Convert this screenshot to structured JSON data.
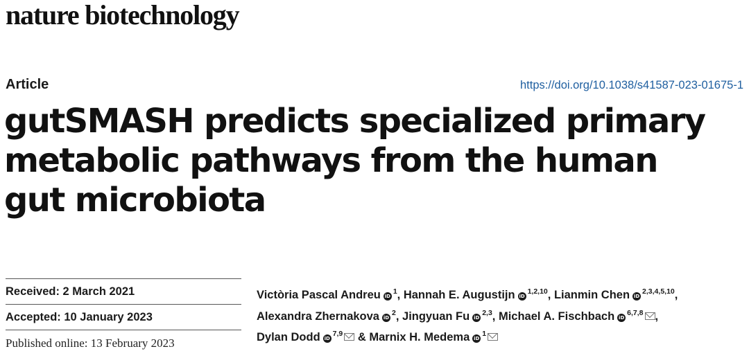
{
  "journal": {
    "name": "nature biotechnology"
  },
  "article": {
    "type": "Article",
    "doi": "https://doi.org/10.1038/s41587-023-01675-1",
    "title_lines": [
      "gutSMASH predicts specialized primary",
      "metabolic pathways from the human",
      "gut microbiota"
    ]
  },
  "dates": {
    "received": "Received: 2 March 2021",
    "accepted": "Accepted: 10 January 2023",
    "published": "Published online: 13 February 2023"
  },
  "authors": [
    {
      "name": "Victòria Pascal Andreu",
      "orcid_icon": "iD",
      "aff": "1",
      "sep": ", "
    },
    {
      "name": "Hannah E. Augustijn",
      "orcid_icon": "iD",
      "aff": "1,2,10",
      "sep": ", "
    },
    {
      "name": "Lianmin Chen",
      "orcid_icon": "iD",
      "aff": "2,3,4,5,10",
      "sep": ","
    },
    {
      "name": "Alexandra Zhernakova",
      "orcid_icon": "iD",
      "aff": "2",
      "sep": ", "
    },
    {
      "name": "Jingyuan Fu",
      "orcid_icon": "iD",
      "aff": "2,3",
      "sep": ", "
    },
    {
      "name": "Michael A. Fischbach",
      "orcid_icon": "iD",
      "aff": "6,7,8",
      "sep": ","
    },
    {
      "name": "Dylan Dodd",
      "orcid_icon": "iD",
      "aff": "7,9",
      "sep": " & "
    },
    {
      "name": "Marnix H. Medema",
      "orcid_icon": "iD",
      "aff": "1",
      "sep": ""
    }
  ]
}
